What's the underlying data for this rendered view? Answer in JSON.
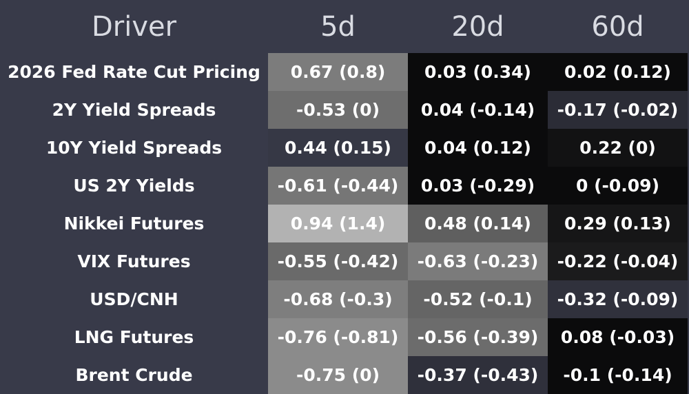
{
  "chart_data": {
    "type": "heatmap",
    "columns": [
      "Driver",
      "5d",
      "20d",
      "60d"
    ],
    "rows": [
      {
        "driver": "2026 Fed Rate Cut Pricing",
        "values": [
          "0.67 (0.8)",
          "0.03 (0.34)",
          "0.02 (0.12)"
        ],
        "fills": [
          "#7c7c7c",
          "#0b0b0c",
          "#0b0b0c"
        ]
      },
      {
        "driver": "2Y Yield Spreads",
        "values": [
          "-0.53 (0)",
          "0.04 (-0.14)",
          "-0.17 (-0.02)"
        ],
        "fills": [
          "#6e6e6e",
          "#0b0b0c",
          "#2b2c36"
        ]
      },
      {
        "driver": "10Y Yield Spreads",
        "values": [
          "0.44 (0.15)",
          "0.04 (0.12)",
          "0.22 (0)"
        ],
        "fills": [
          "#363845",
          "#0b0b0c",
          "#121213"
        ]
      },
      {
        "driver": "US 2Y Yields",
        "values": [
          "-0.61 (-0.44)",
          "0.03 (-0.29)",
          "0 (-0.09)"
        ],
        "fills": [
          "#767676",
          "#0b0b0c",
          "#0b0b0c"
        ]
      },
      {
        "driver": "Nikkei Futures",
        "values": [
          "0.94 (1.4)",
          "0.48 (0.14)",
          "0.29 (0.13)"
        ],
        "fills": [
          "#b2b2b2",
          "#5f5f5f",
          "#161617"
        ]
      },
      {
        "driver": "VIX Futures",
        "values": [
          "-0.55 (-0.42)",
          "-0.63 (-0.23)",
          "-0.22 (-0.04)"
        ],
        "fills": [
          "#6a6a6a",
          "#7b7b7b",
          "#1b1b1c"
        ]
      },
      {
        "driver": "USD/CNH",
        "values": [
          "-0.68 (-0.3)",
          "-0.52 (-0.1)",
          "-0.32 (-0.09)"
        ],
        "fills": [
          "#7e7e7e",
          "#656565",
          "#30313c"
        ]
      },
      {
        "driver": "LNG Futures",
        "values": [
          "-0.76 (-0.81)",
          "-0.56 (-0.39)",
          "0.08 (-0.03)"
        ],
        "fills": [
          "#8b8b8b",
          "#6c6c6c",
          "#0b0b0c"
        ]
      },
      {
        "driver": "Brent Crude",
        "values": [
          "-0.75 (0)",
          "-0.37 (-0.43)",
          "-0.1 (-0.14)"
        ],
        "fills": [
          "#8b8b8b",
          "#2f303b",
          "#0b0b0c"
        ]
      }
    ]
  }
}
